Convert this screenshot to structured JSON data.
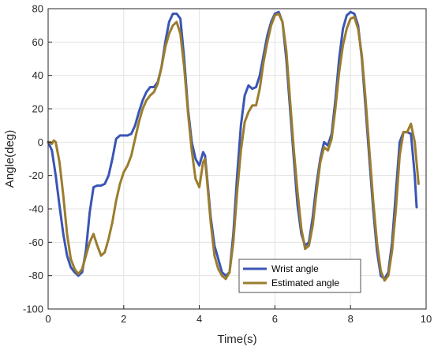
{
  "chart_data": {
    "type": "line",
    "xlabel": "Time(s)",
    "ylabel": "Angle(deg)",
    "xlim": [
      0,
      10
    ],
    "ylim": [
      -100,
      80
    ],
    "xticks": [
      0,
      2,
      4,
      6,
      8,
      10
    ],
    "yticks": [
      -100,
      -80,
      -60,
      -40,
      -20,
      0,
      20,
      40,
      60,
      80
    ],
    "grid": true,
    "legend_position": "bottom-right",
    "series": [
      {
        "name": "Wrist angle",
        "color": "#3a55b5",
        "points": [
          [
            0.0,
            0
          ],
          [
            0.1,
            -5
          ],
          [
            0.2,
            -20
          ],
          [
            0.3,
            -38
          ],
          [
            0.4,
            -55
          ],
          [
            0.5,
            -68
          ],
          [
            0.6,
            -75
          ],
          [
            0.7,
            -78
          ],
          [
            0.8,
            -80
          ],
          [
            0.9,
            -78
          ],
          [
            1.0,
            -65
          ],
          [
            1.1,
            -42
          ],
          [
            1.2,
            -27
          ],
          [
            1.3,
            -26
          ],
          [
            1.4,
            -26
          ],
          [
            1.5,
            -25
          ],
          [
            1.6,
            -20
          ],
          [
            1.7,
            -10
          ],
          [
            1.8,
            2
          ],
          [
            1.9,
            4
          ],
          [
            2.0,
            4
          ],
          [
            2.1,
            4
          ],
          [
            2.2,
            5
          ],
          [
            2.3,
            10
          ],
          [
            2.4,
            18
          ],
          [
            2.5,
            25
          ],
          [
            2.6,
            30
          ],
          [
            2.7,
            33
          ],
          [
            2.8,
            33
          ],
          [
            2.9,
            36
          ],
          [
            3.0,
            45
          ],
          [
            3.1,
            60
          ],
          [
            3.2,
            72
          ],
          [
            3.3,
            77
          ],
          [
            3.4,
            77
          ],
          [
            3.5,
            74
          ],
          [
            3.6,
            50
          ],
          [
            3.7,
            20
          ],
          [
            3.8,
            0
          ],
          [
            3.9,
            -10
          ],
          [
            4.0,
            -14
          ],
          [
            4.1,
            -6
          ],
          [
            4.15,
            -8
          ],
          [
            4.2,
            -20
          ],
          [
            4.3,
            -45
          ],
          [
            4.4,
            -62
          ],
          [
            4.5,
            -70
          ],
          [
            4.6,
            -78
          ],
          [
            4.7,
            -80
          ],
          [
            4.8,
            -78
          ],
          [
            4.9,
            -55
          ],
          [
            5.0,
            -20
          ],
          [
            5.1,
            10
          ],
          [
            5.2,
            28
          ],
          [
            5.3,
            34
          ],
          [
            5.4,
            32
          ],
          [
            5.5,
            33
          ],
          [
            5.6,
            40
          ],
          [
            5.7,
            52
          ],
          [
            5.8,
            64
          ],
          [
            5.9,
            72
          ],
          [
            6.0,
            77
          ],
          [
            6.1,
            78
          ],
          [
            6.2,
            72
          ],
          [
            6.3,
            50
          ],
          [
            6.4,
            20
          ],
          [
            6.5,
            -10
          ],
          [
            6.6,
            -38
          ],
          [
            6.7,
            -55
          ],
          [
            6.8,
            -62
          ],
          [
            6.9,
            -60
          ],
          [
            7.0,
            -45
          ],
          [
            7.1,
            -25
          ],
          [
            7.2,
            -10
          ],
          [
            7.3,
            0
          ],
          [
            7.4,
            -2
          ],
          [
            7.5,
            5
          ],
          [
            7.6,
            25
          ],
          [
            7.7,
            50
          ],
          [
            7.8,
            68
          ],
          [
            7.9,
            76
          ],
          [
            8.0,
            78
          ],
          [
            8.1,
            77
          ],
          [
            8.2,
            70
          ],
          [
            8.3,
            50
          ],
          [
            8.4,
            20
          ],
          [
            8.5,
            -10
          ],
          [
            8.6,
            -40
          ],
          [
            8.7,
            -65
          ],
          [
            8.8,
            -80
          ],
          [
            8.9,
            -82
          ],
          [
            9.0,
            -78
          ],
          [
            9.1,
            -60
          ],
          [
            9.2,
            -30
          ],
          [
            9.3,
            0
          ],
          [
            9.4,
            6
          ],
          [
            9.5,
            6
          ],
          [
            9.6,
            5
          ],
          [
            9.7,
            -20
          ],
          [
            9.75,
            -39
          ]
        ]
      },
      {
        "name": "Estimated angle",
        "color": "#9b7d2d",
        "points": [
          [
            0.0,
            0
          ],
          [
            0.05,
            0
          ],
          [
            0.1,
            -1
          ],
          [
            0.15,
            1
          ],
          [
            0.2,
            0
          ],
          [
            0.3,
            -12
          ],
          [
            0.4,
            -32
          ],
          [
            0.5,
            -55
          ],
          [
            0.6,
            -70
          ],
          [
            0.7,
            -76
          ],
          [
            0.8,
            -79
          ],
          [
            0.9,
            -76
          ],
          [
            1.0,
            -68
          ],
          [
            1.1,
            -60
          ],
          [
            1.2,
            -55
          ],
          [
            1.3,
            -62
          ],
          [
            1.4,
            -68
          ],
          [
            1.5,
            -66
          ],
          [
            1.6,
            -58
          ],
          [
            1.7,
            -48
          ],
          [
            1.8,
            -35
          ],
          [
            1.9,
            -25
          ],
          [
            2.0,
            -18
          ],
          [
            2.1,
            -14
          ],
          [
            2.2,
            -8
          ],
          [
            2.3,
            2
          ],
          [
            2.4,
            12
          ],
          [
            2.5,
            20
          ],
          [
            2.6,
            25
          ],
          [
            2.7,
            28
          ],
          [
            2.8,
            30
          ],
          [
            2.9,
            35
          ],
          [
            3.0,
            45
          ],
          [
            3.1,
            57
          ],
          [
            3.2,
            65
          ],
          [
            3.3,
            70
          ],
          [
            3.4,
            72
          ],
          [
            3.5,
            65
          ],
          [
            3.6,
            45
          ],
          [
            3.7,
            18
          ],
          [
            3.8,
            -5
          ],
          [
            3.9,
            -22
          ],
          [
            4.0,
            -27
          ],
          [
            4.1,
            -12
          ],
          [
            4.15,
            -10
          ],
          [
            4.2,
            -22
          ],
          [
            4.3,
            -48
          ],
          [
            4.4,
            -68
          ],
          [
            4.5,
            -76
          ],
          [
            4.6,
            -80
          ],
          [
            4.7,
            -82
          ],
          [
            4.8,
            -78
          ],
          [
            4.9,
            -60
          ],
          [
            5.0,
            -30
          ],
          [
            5.1,
            -5
          ],
          [
            5.2,
            12
          ],
          [
            5.3,
            18
          ],
          [
            5.4,
            22
          ],
          [
            5.5,
            22
          ],
          [
            5.6,
            32
          ],
          [
            5.7,
            48
          ],
          [
            5.8,
            60
          ],
          [
            5.9,
            70
          ],
          [
            6.0,
            76
          ],
          [
            6.1,
            77
          ],
          [
            6.2,
            72
          ],
          [
            6.3,
            55
          ],
          [
            6.4,
            25
          ],
          [
            6.5,
            -5
          ],
          [
            6.6,
            -30
          ],
          [
            6.7,
            -52
          ],
          [
            6.8,
            -64
          ],
          [
            6.9,
            -62
          ],
          [
            7.0,
            -50
          ],
          [
            7.1,
            -30
          ],
          [
            7.2,
            -12
          ],
          [
            7.3,
            -3
          ],
          [
            7.4,
            -5
          ],
          [
            7.5,
            2
          ],
          [
            7.6,
            20
          ],
          [
            7.7,
            42
          ],
          [
            7.8,
            58
          ],
          [
            7.9,
            68
          ],
          [
            8.0,
            74
          ],
          [
            8.1,
            75
          ],
          [
            8.2,
            68
          ],
          [
            8.3,
            52
          ],
          [
            8.4,
            25
          ],
          [
            8.5,
            -5
          ],
          [
            8.6,
            -35
          ],
          [
            8.7,
            -60
          ],
          [
            8.8,
            -77
          ],
          [
            8.9,
            -83
          ],
          [
            9.0,
            -80
          ],
          [
            9.1,
            -65
          ],
          [
            9.2,
            -40
          ],
          [
            9.3,
            -8
          ],
          [
            9.4,
            6
          ],
          [
            9.5,
            6
          ],
          [
            9.6,
            11
          ],
          [
            9.7,
            0
          ],
          [
            9.8,
            -25
          ]
        ]
      }
    ]
  }
}
